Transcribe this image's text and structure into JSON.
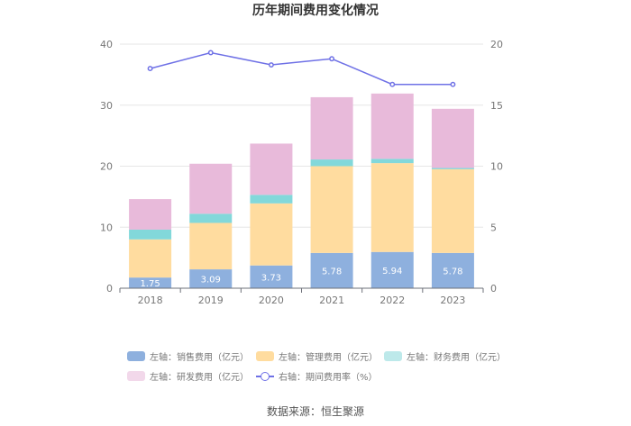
{
  "chart_data": {
    "type": "bar",
    "title": "历年期间费用变化情况",
    "categories": [
      "2018",
      "2019",
      "2020",
      "2021",
      "2022",
      "2023"
    ],
    "series": [
      {
        "name": "左轴：销售费用（亿元）",
        "axis": "left",
        "stack": "costs",
        "color": "#8eb0de",
        "values": [
          1.75,
          3.09,
          3.73,
          5.78,
          5.94,
          5.78
        ]
      },
      {
        "name": "左轴：管理费用（亿元）",
        "axis": "left",
        "stack": "costs",
        "color": "#ffdc9f",
        "values": [
          6.25,
          7.61,
          10.17,
          14.22,
          14.56,
          13.72
        ]
      },
      {
        "name": "左轴：财务费用（亿元）",
        "axis": "left",
        "stack": "costs",
        "color": "#82d8da",
        "values": [
          1.6,
          1.5,
          1.4,
          1.1,
          0.7,
          0.2
        ]
      },
      {
        "name": "左轴：研发费用（亿元）",
        "axis": "left",
        "stack": "costs",
        "color": "#e8bada",
        "values": [
          5.0,
          8.2,
          8.4,
          10.2,
          10.7,
          9.7
        ]
      },
      {
        "name": "右轴：期间费用率（%）",
        "axis": "right",
        "type": "line",
        "color": "#6f71e6",
        "values": [
          18.0,
          19.3,
          18.3,
          18.8,
          16.7,
          16.7
        ]
      }
    ],
    "data_labels": [
      "1.75",
      "3.09",
      "3.73",
      "5.78",
      "5.94",
      "5.78"
    ],
    "y_left": {
      "min": 0,
      "max": 40,
      "ticks": [
        0,
        10,
        20,
        30,
        40
      ]
    },
    "y_right": {
      "min": 0,
      "max": 20,
      "ticks": [
        0,
        5,
        10,
        15,
        20
      ]
    },
    "grid": true,
    "legend_position": "bottom"
  },
  "source": "数据来源：恒生聚源"
}
